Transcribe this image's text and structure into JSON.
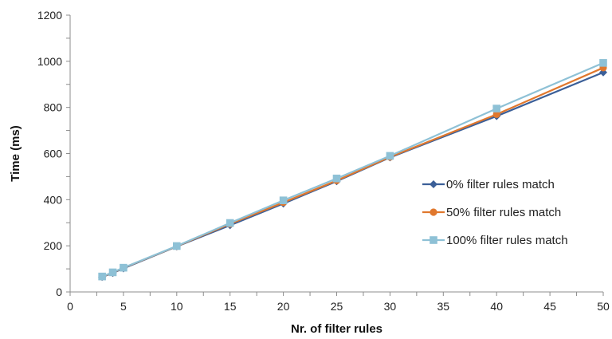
{
  "chart_data": {
    "type": "line",
    "xlabel": "Nr. of filter rules",
    "ylabel": "Time (ms)",
    "xlim": [
      0,
      50
    ],
    "ylim": [
      0,
      1200
    ],
    "xticks": [
      0,
      5,
      10,
      15,
      20,
      25,
      30,
      35,
      40,
      45,
      50
    ],
    "yticks": [
      0,
      200,
      400,
      600,
      800,
      1000,
      1200
    ],
    "grid": false,
    "legend_position": "right-center",
    "x": [
      3,
      4,
      5,
      10,
      15,
      20,
      25,
      30,
      40,
      50
    ],
    "series": [
      {
        "name": "0% filter rules match",
        "color": "#3B5F98",
        "marker": "diamond",
        "values": [
          65,
          82,
          102,
          197,
          289,
          383,
          480,
          583,
          762,
          952
        ]
      },
      {
        "name": "50% filter rules match",
        "color": "#E0782E",
        "marker": "circle",
        "values": [
          66,
          84,
          104,
          198,
          295,
          388,
          483,
          585,
          770,
          972
        ]
      },
      {
        "name": "100% filter rules match",
        "color": "#8EC1D6",
        "marker": "square",
        "values": [
          67,
          85,
          105,
          199,
          299,
          397,
          492,
          590,
          795,
          993
        ]
      }
    ]
  }
}
